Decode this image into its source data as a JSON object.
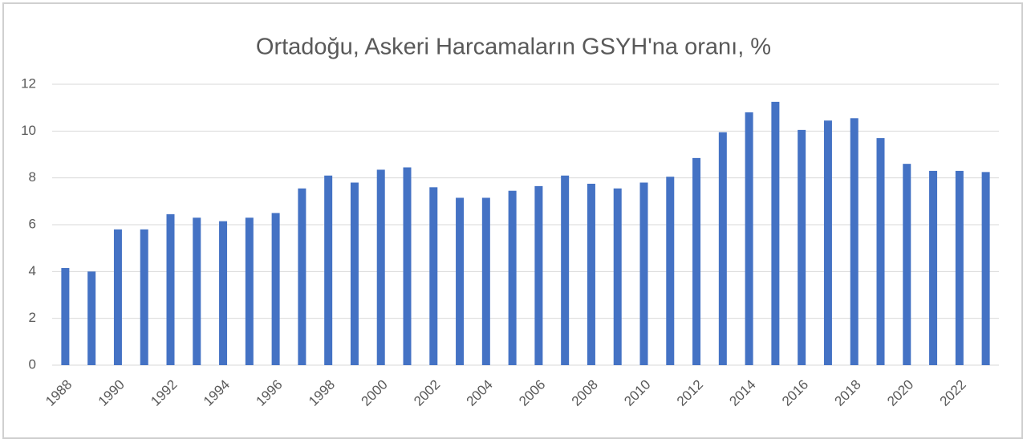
{
  "chart_data": {
    "type": "bar",
    "title": "Ortadoğu,  Askeri Harcamaların GSYH'na oranı, %",
    "categories": [
      "1988",
      null,
      "1990",
      null,
      "1992",
      null,
      "1994",
      null,
      "1996",
      null,
      "1998",
      null,
      "2000",
      null,
      "2002",
      null,
      "2004",
      null,
      "2006",
      null,
      "2008",
      null,
      "2010",
      null,
      "2012",
      null,
      "2014",
      null,
      "2016",
      null,
      "2018",
      null,
      "2020",
      null,
      "2022",
      null
    ],
    "values": [
      4.15,
      4.0,
      5.8,
      5.8,
      6.45,
      6.3,
      6.15,
      6.3,
      6.5,
      7.55,
      8.1,
      7.8,
      8.35,
      8.45,
      7.6,
      7.15,
      7.15,
      7.45,
      7.65,
      8.1,
      7.75,
      7.55,
      7.8,
      8.05,
      8.85,
      9.95,
      10.8,
      11.25,
      10.05,
      10.45,
      10.55,
      9.7,
      8.6,
      8.3,
      8.3,
      8.25
    ],
    "color": "#4472c4",
    "ylim": [
      0,
      12
    ],
    "yticks": [
      0,
      2,
      4,
      6,
      8,
      10,
      12
    ],
    "grid": true
  }
}
